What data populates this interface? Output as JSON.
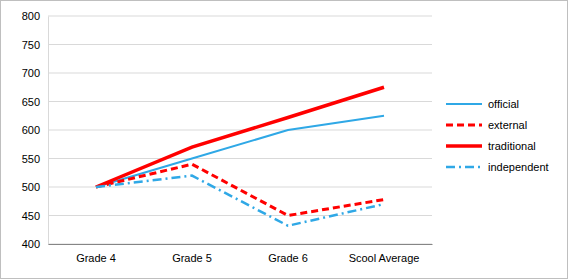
{
  "chart_data": {
    "type": "line",
    "categories": [
      "Grade 4",
      "Grade 5",
      "Grade 6",
      "Scool Average"
    ],
    "series": [
      {
        "name": "official",
        "color": "#2fa8e6",
        "line_style": "solid",
        "values": [
          500,
          550,
          600,
          625
        ]
      },
      {
        "name": "external",
        "color": "#ff0000",
        "line_style": "dashed",
        "values": [
          500,
          540,
          450,
          478
        ]
      },
      {
        "name": "traditional",
        "color": "#ff0000",
        "line_style": "solid",
        "values": [
          500,
          570,
          622,
          675
        ]
      },
      {
        "name": "independent",
        "color": "#2fa8e6",
        "line_style": "dash-dot",
        "values": [
          500,
          520,
          432,
          470
        ]
      }
    ],
    "ylim": [
      400,
      800
    ],
    "yticks": [
      400,
      450,
      500,
      550,
      600,
      650,
      700,
      750,
      800
    ],
    "grid": true,
    "legend": "right"
  }
}
